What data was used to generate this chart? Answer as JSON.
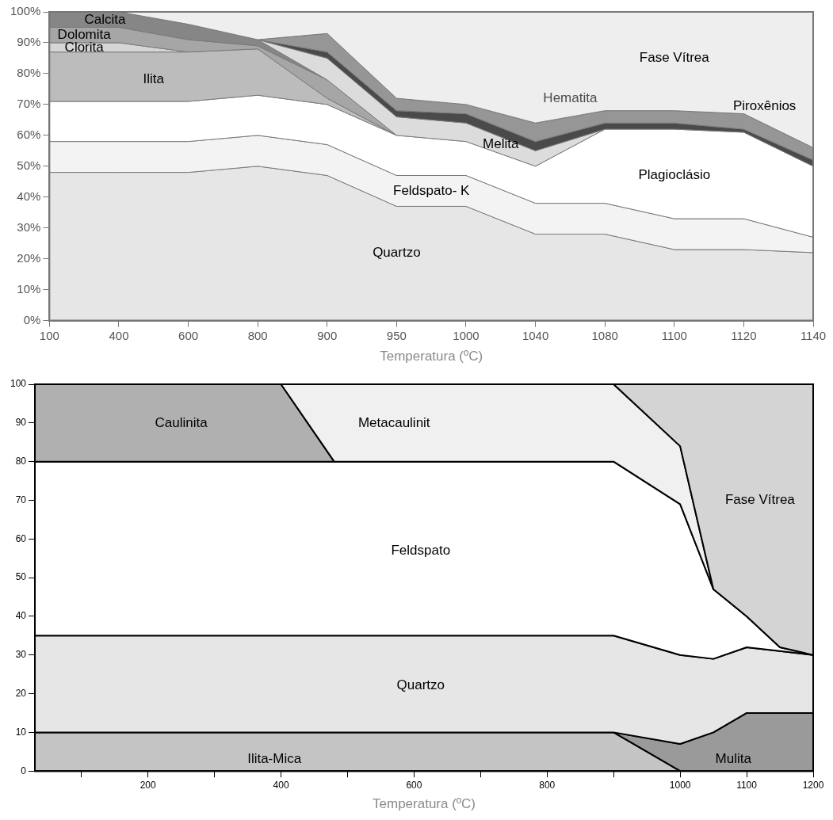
{
  "chart_data": [
    {
      "type": "area",
      "stacked": true,
      "xlabel": "Temperatura (ºC)",
      "categories": [
        "100",
        "400",
        "600",
        "800",
        "900",
        "950",
        "1000",
        "1040",
        "1080",
        "1100",
        "1120",
        "1140"
      ],
      "ylim": [
        0,
        100
      ],
      "yticks": [
        {
          "value": 0,
          "label": "0%"
        },
        {
          "value": 10,
          "label": "10%"
        },
        {
          "value": 20,
          "label": "20%"
        },
        {
          "value": 30,
          "label": "30%"
        },
        {
          "value": 40,
          "label": "40%"
        },
        {
          "value": 50,
          "label": "50%"
        },
        {
          "value": 60,
          "label": "60%"
        },
        {
          "value": 70,
          "label": "70%"
        },
        {
          "value": 80,
          "label": "80%"
        },
        {
          "value": 90,
          "label": "90%"
        },
        {
          "value": 100,
          "label": "100%"
        }
      ],
      "series": [
        {
          "name": "Quartzo",
          "color": "#e6e6e6",
          "values": [
            48,
            48,
            48,
            50,
            47,
            37,
            37,
            28,
            28,
            23,
            23,
            22
          ]
        },
        {
          "name": "Feldspato- K",
          "color": "#f3f3f3",
          "values": [
            10,
            10,
            10,
            10,
            10,
            10,
            10,
            10,
            10,
            10,
            10,
            5
          ]
        },
        {
          "name": "Plagioclásio",
          "color": "#ffffff",
          "values": [
            13,
            13,
            13,
            13,
            13,
            13,
            11,
            12,
            24,
            29,
            28,
            23
          ]
        },
        {
          "name": "Ilita",
          "color": "#bcbcbc",
          "values": [
            16,
            16,
            16,
            15,
            2,
            0,
            null,
            null,
            null,
            null,
            null,
            null
          ]
        },
        {
          "name": "Clorita",
          "color": "#d6d6d6",
          "values": [
            3,
            3,
            0,
            null,
            null,
            null,
            null,
            null,
            null,
            null,
            null,
            null
          ]
        },
        {
          "name": "Dolomita",
          "color": "#a6a6a6",
          "values": [
            5,
            5,
            4,
            1,
            6,
            0,
            null,
            null,
            null,
            null,
            null,
            null
          ]
        },
        {
          "name": "Calcita",
          "color": "#868686",
          "values": [
            5,
            5,
            5,
            2,
            0,
            null,
            null,
            null,
            null,
            null,
            null,
            null
          ]
        },
        {
          "name": "Melita",
          "color": "#dcdcdc",
          "values": [
            null,
            null,
            null,
            0,
            7,
            6,
            6,
            5,
            0,
            null,
            null,
            null
          ]
        },
        {
          "name": "Hematita",
          "color": "#4a4a4a",
          "values": [
            null,
            null,
            null,
            0,
            2,
            2,
            3,
            3,
            2,
            2,
            1,
            2
          ]
        },
        {
          "name": "Piroxênios",
          "color": "#969696",
          "values": [
            null,
            null,
            null,
            0,
            6,
            4,
            3,
            6,
            4,
            4,
            5,
            4
          ]
        },
        {
          "name": "Fase Vítrea",
          "color": "#eeeeee",
          "values": [
            null,
            0,
            4,
            9,
            7,
            28,
            30,
            36,
            32,
            32,
            33,
            44
          ]
        }
      ]
    },
    {
      "type": "area",
      "stacked": true,
      "xlabel": "Temperatura (ºC)",
      "x": [
        30,
        400,
        480,
        900,
        1000,
        1050,
        1100,
        1150,
        1200
      ],
      "xlim": [
        30,
        1200
      ],
      "xticks": [
        {
          "value": 100,
          "label": null
        },
        200,
        {
          "value": 300,
          "label": null
        },
        400,
        {
          "value": 500,
          "label": null
        },
        600,
        {
          "value": 700,
          "label": null
        },
        800,
        {
          "value": 900,
          "label": null
        },
        1000,
        1100,
        1200
      ],
      "ylim": [
        0,
        100
      ],
      "yticks": [
        0,
        10,
        20,
        30,
        40,
        50,
        60,
        70,
        80,
        90,
        100
      ],
      "series": [
        {
          "name": "Ilita-Mica",
          "color": "#c4c4c4",
          "values": [
            10,
            10,
            10,
            10,
            0,
            null,
            null,
            null,
            null
          ]
        },
        {
          "name": "Mulita",
          "color": "#9a9a9a",
          "values": [
            null,
            null,
            null,
            0,
            7,
            10,
            15,
            15,
            15
          ]
        },
        {
          "name": "Quartzo",
          "color": "#e6e6e6",
          "values": [
            25,
            25,
            25,
            25,
            23,
            19,
            17,
            16,
            15
          ]
        },
        {
          "name": "Feldspato",
          "color": "#ffffff",
          "values": [
            45,
            45,
            45,
            45,
            39,
            18,
            8,
            1,
            0
          ]
        },
        {
          "name": "Caulinita",
          "color": "#b0b0b0",
          "values": [
            20,
            20,
            0,
            null,
            null,
            null,
            null,
            null,
            null
          ]
        },
        {
          "name": "Metacaulinit",
          "color": "#f0f0f0",
          "values": [
            null,
            0,
            20,
            20,
            15,
            0,
            null,
            null,
            null
          ]
        },
        {
          "name": "Fase Vítrea",
          "color": "#d4d4d4",
          "values": [
            null,
            null,
            null,
            0,
            16,
            53,
            60,
            68,
            70
          ]
        }
      ]
    }
  ]
}
